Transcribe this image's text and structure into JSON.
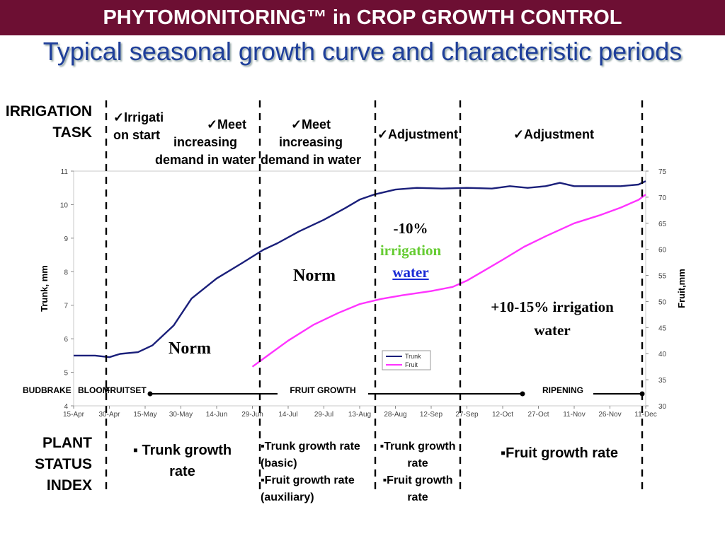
{
  "header": {
    "title": "PHYTOMONITORING™ in CROP GROWTH CONTROL",
    "subtitle": "Typical seasonal growth curve and characteristic periods"
  },
  "left_labels": {
    "irrigation_task": [
      "IRRIGATION",
      "TASK"
    ],
    "plant_status_index": [
      "PLANT",
      "STATUS",
      "INDEX"
    ]
  },
  "irrigation_tasks": [
    [
      "✓Irrigati",
      "on start"
    ],
    [
      "✓Meet",
      "increasing",
      "demand in water"
    ],
    [
      "✓Meet",
      "increasing",
      "demand in water"
    ],
    [
      "✓Adjustment"
    ],
    [
      "✓Adjustment"
    ]
  ],
  "plant_status": [
    [
      "▪ Trunk growth",
      "rate"
    ],
    [
      "▪Trunk growth rate",
      "(basic)",
      "▪Fruit growth rate",
      "(auxiliary)"
    ],
    [
      "▪Trunk growth",
      "rate",
      "▪Fruit growth",
      "rate"
    ],
    [
      "▪Fruit growth rate"
    ]
  ],
  "annotations": {
    "norm_left": "Norm",
    "norm_mid": "Norm",
    "minus10": "-10%",
    "irrigation_word": "irrigation",
    "water_word": "water",
    "plus_line1": "+10-15%  irrigation",
    "plus_line2": "water"
  },
  "phases": [
    "BUDBRAKE",
    "BLOOM",
    "FRUITSET",
    "FRUIT GROWTH",
    "RIPENING"
  ],
  "colors": {
    "banner": "#6d0f33",
    "subtitle": "#1f3f9a",
    "trunk": "#1a1f7a",
    "fruit": "#ff33ff",
    "irrigation_word": "#66cc33",
    "water_word": "#1a2bd6"
  },
  "chart_data": {
    "type": "line",
    "x_ticks": [
      "15-Apr",
      "30-Apr",
      "15-May",
      "30-May",
      "14-Jun",
      "29-Jun",
      "14-Jul",
      "29-Jul",
      "13-Aug",
      "28-Aug",
      "12-Sep",
      "27-Sep",
      "12-Oct",
      "27-Oct",
      "11-Nov",
      "26-Nov",
      "11-Dec"
    ],
    "y_left": {
      "label": "Trunk, mm",
      "range": [
        4,
        11
      ],
      "ticks": [
        4,
        5,
        6,
        7,
        8,
        9,
        10,
        11
      ]
    },
    "y_right": {
      "label": "Fruit,mm",
      "range": [
        30,
        75
      ],
      "ticks": [
        30,
        35,
        40,
        45,
        50,
        55,
        60,
        65,
        70,
        75
      ]
    },
    "legend": {
      "placement": "bottom-center",
      "entries": [
        "Trunk",
        "Fruit"
      ]
    },
    "series": [
      {
        "name": "Trunk",
        "axis": "left",
        "x_index": [
          0,
          0.6,
          1,
          1.3,
          1.8,
          2.2,
          2.8,
          3.3,
          4,
          4.7,
          5.3,
          5.7,
          6.3,
          7,
          7.6,
          8,
          8.4,
          9,
          9.6,
          10.3,
          11,
          11.7,
          12.2,
          12.7,
          13.2,
          13.6,
          14,
          14.7,
          15.3,
          15.8,
          16
        ],
        "values": [
          5.5,
          5.5,
          5.45,
          5.55,
          5.6,
          5.8,
          6.4,
          7.2,
          7.8,
          8.25,
          8.65,
          8.85,
          9.2,
          9.55,
          9.9,
          10.15,
          10.3,
          10.45,
          10.5,
          10.48,
          10.5,
          10.48,
          10.55,
          10.5,
          10.55,
          10.65,
          10.55,
          10.55,
          10.55,
          10.6,
          10.7
        ]
      },
      {
        "name": "Fruit",
        "axis": "right",
        "x_index": [
          5,
          5.4,
          6,
          6.7,
          7.4,
          8,
          8.6,
          9.2,
          10,
          10.6,
          11,
          11.5,
          12,
          12.6,
          13.2,
          14,
          14.7,
          15.3,
          15.8,
          16
        ],
        "values": [
          37.5,
          39.5,
          42.5,
          45.5,
          47.8,
          49.5,
          50.5,
          51.2,
          52,
          52.8,
          54,
          56,
          58,
          60.5,
          62.5,
          65,
          66.5,
          68,
          69.5,
          70.5
        ]
      }
    ]
  }
}
